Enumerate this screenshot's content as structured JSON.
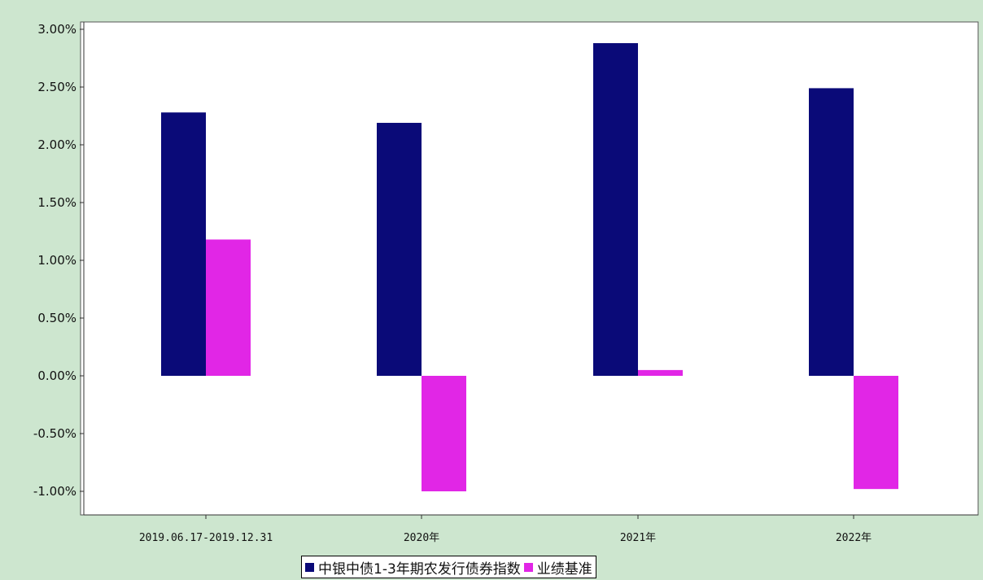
{
  "chart_data": {
    "type": "bar",
    "categories": [
      "2019.06.17-2019.12.31",
      "2020年",
      "2021年",
      "2022年"
    ],
    "series": [
      {
        "name": "中银中债1-3年期农发行债券指数",
        "values": [
          2.28,
          2.19,
          2.88,
          2.49
        ],
        "color": "#0a0a78"
      },
      {
        "name": "业绩基准",
        "values": [
          1.18,
          -1.0,
          0.05,
          -0.98
        ],
        "color": "#e126e6"
      }
    ],
    "ylim": [
      -1.2,
      3.05
    ],
    "yticks": [
      "3.00%",
      "2.50%",
      "2.00%",
      "1.50%",
      "1.00%",
      "0.50%",
      "0.00%",
      "-0.50%",
      "-1.00%"
    ],
    "ytick_values": [
      3.0,
      2.5,
      2.0,
      1.5,
      1.0,
      0.5,
      0.0,
      -0.5,
      -1.0
    ],
    "grid": false,
    "legend_position": "bottom",
    "plot_background": "#ffffff",
    "page_background": "#cde6cf"
  }
}
